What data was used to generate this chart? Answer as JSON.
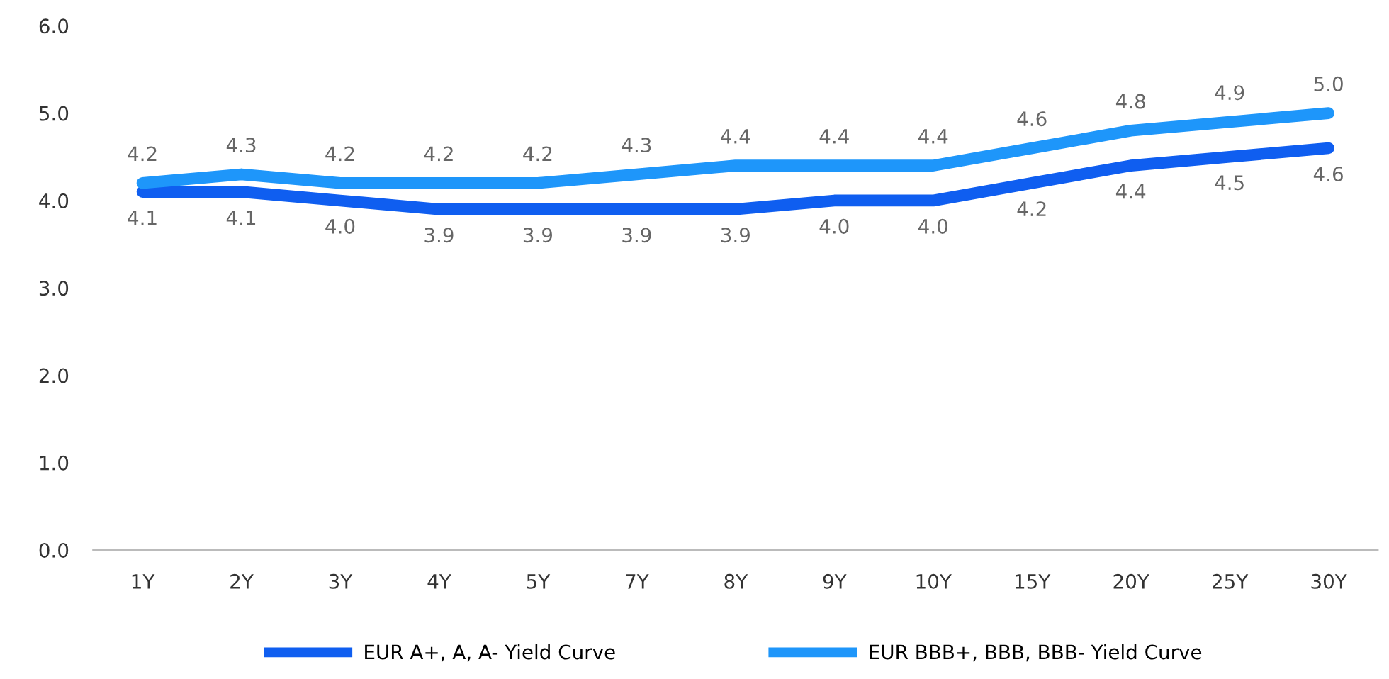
{
  "chart_data": {
    "type": "line",
    "categories": [
      "1Y",
      "2Y",
      "3Y",
      "4Y",
      "5Y",
      "7Y",
      "8Y",
      "9Y",
      "10Y",
      "15Y",
      "20Y",
      "25Y",
      "30Y"
    ],
    "series": [
      {
        "name": "EUR A+, A, A- Yield Curve",
        "color": "#0f5ef0",
        "values": [
          4.1,
          4.1,
          4.0,
          3.9,
          3.9,
          3.9,
          3.9,
          4.0,
          4.0,
          4.2,
          4.4,
          4.5,
          4.6
        ],
        "value_labels": [
          "4.1",
          "4.1",
          "4.0",
          "3.9",
          "3.9",
          "3.9",
          "3.9",
          "4.0",
          "4.0",
          "4.2",
          "4.4",
          "4.5",
          "4.6"
        ]
      },
      {
        "name": "EUR BBB+, BBB, BBB- Yield Curve",
        "color": "#1e96fa",
        "values": [
          4.2,
          4.3,
          4.2,
          4.2,
          4.2,
          4.3,
          4.4,
          4.4,
          4.4,
          4.6,
          4.8,
          4.9,
          5.0
        ],
        "value_labels": [
          "4.2",
          "4.3",
          "4.2",
          "4.2",
          "4.2",
          "4.3",
          "4.4",
          "4.4",
          "4.4",
          "4.6",
          "4.8",
          "4.9",
          "5.0"
        ]
      }
    ],
    "ylim": [
      0,
      6
    ],
    "yticks": [
      {
        "value": 0,
        "label": "0.0"
      },
      {
        "value": 1,
        "label": "1.0"
      },
      {
        "value": 2,
        "label": "2.0"
      },
      {
        "value": 3,
        "label": "3.0"
      },
      {
        "value": 4,
        "label": "4.0"
      },
      {
        "value": 5,
        "label": "5.0"
      },
      {
        "value": 6,
        "label": "6.0"
      }
    ],
    "grid": false,
    "legend": "bottom",
    "marker": "none",
    "line_style": "solid"
  }
}
